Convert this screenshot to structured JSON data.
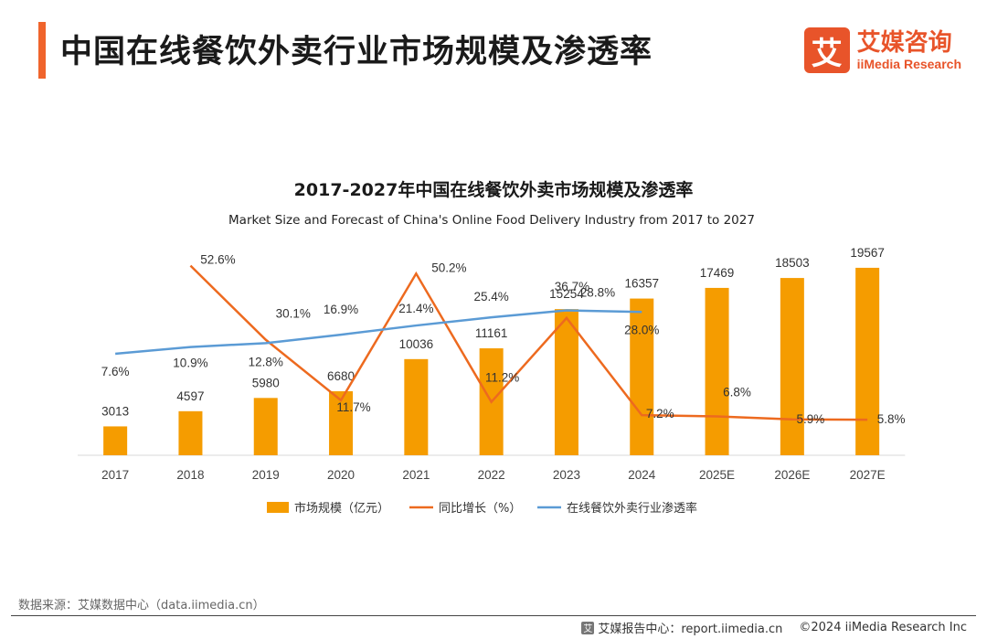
{
  "header": {
    "title": "中国在线餐饮外卖行业市场规模及渗透率",
    "logo_mark": "艾",
    "logo_cn": "艾媒咨询",
    "logo_en": "iiMedia Research"
  },
  "chart_data": {
    "type": "bar",
    "title": "2017-2027年中国在线餐饮外卖市场规模及渗透率",
    "subtitle": "Market Size and Forecast of China's Online Food Delivery Industry from 2017 to 2027",
    "categories": [
      "2017",
      "2018",
      "2019",
      "2020",
      "2021",
      "2022",
      "2023",
      "2024",
      "2025E",
      "2026E",
      "2027E"
    ],
    "series": [
      {
        "name": "市场规模（亿元）",
        "type": "bar",
        "color": "#f59c00",
        "values": [
          3013,
          4597,
          5980,
          6680,
          10036,
          11161,
          15254,
          16357,
          17469,
          18503,
          19567
        ],
        "labels": [
          "3013",
          "4597",
          "5980",
          "6680",
          "10036",
          "11161",
          "15254",
          "16357",
          "17469",
          "18503",
          "19567"
        ]
      },
      {
        "name": "同比增长（%）",
        "type": "line",
        "color": "#ed6a1f",
        "values": [
          null,
          52.6,
          30.1,
          11.7,
          50.2,
          11.2,
          36.7,
          7.2,
          6.8,
          5.9,
          5.8
        ],
        "labels": [
          "",
          "52.6%",
          "30.1%",
          "11.7%",
          "50.2%",
          "11.2%",
          "36.7%",
          "7.2%",
          "6.8%",
          "5.9%",
          "5.8%"
        ]
      },
      {
        "name": "在线餐饮外卖行业渗透率",
        "type": "line",
        "color": "#5b9bd5",
        "values": [
          7.6,
          10.9,
          12.8,
          16.9,
          21.4,
          25.4,
          28.8,
          28.0,
          null,
          null,
          null
        ],
        "labels": [
          "7.6%",
          "10.9%",
          "12.8%",
          "16.9%",
          "21.4%",
          "25.4%",
          "28.8%",
          "28.0%",
          "",
          "",
          ""
        ]
      }
    ],
    "legend_position": "bottom",
    "grid": false
  },
  "footer": {
    "source": "数据来源：艾媒数据中心（data.iimedia.cn）",
    "report_icon": "iimedia-logo-icon",
    "report": "艾媒报告中心：report.iimedia.cn",
    "copyright": "©2024  iiMedia Research  Inc"
  }
}
